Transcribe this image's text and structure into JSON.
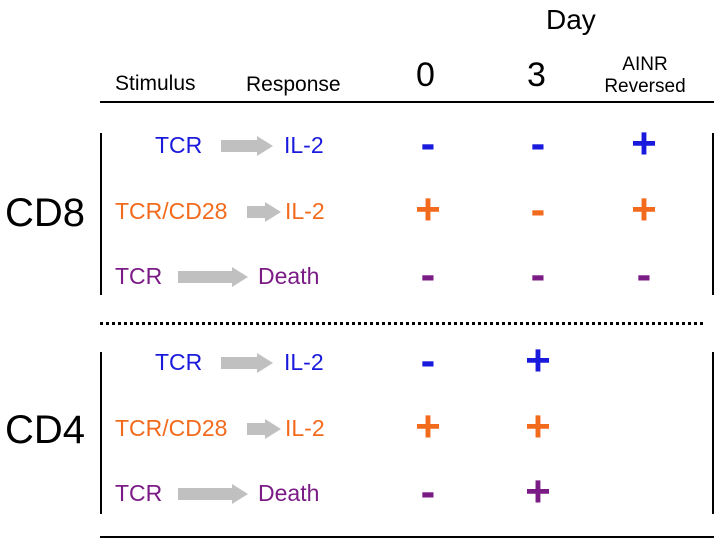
{
  "header": {
    "stimulus": "Stimulus",
    "response": "Response",
    "day": "Day",
    "day0": "0",
    "day3": "3",
    "ainr_line1": "AINR",
    "ainr_line2": "Reversed"
  },
  "colors": {
    "blue": "#1a1adc",
    "orange": "#f26b1d",
    "purple": "#7b1b86",
    "arrow": "#c0c0c0"
  },
  "groups": [
    {
      "name": "CD8",
      "rows": [
        {
          "stimulus": "TCR",
          "response": "IL-2",
          "color": "blue",
          "day0": "-",
          "day3": "-",
          "ainr": "+"
        },
        {
          "stimulus": "TCR/CD28",
          "response": "IL-2",
          "color": "orange",
          "day0": "+",
          "day3": "-",
          "ainr": "+"
        },
        {
          "stimulus": "TCR",
          "response": "Death",
          "color": "purple",
          "day0": "-",
          "day3": "-",
          "ainr": "-"
        }
      ]
    },
    {
      "name": "CD4",
      "rows": [
        {
          "stimulus": "TCR",
          "response": "IL-2",
          "color": "blue",
          "day0": "-",
          "day3": "+",
          "ainr": ""
        },
        {
          "stimulus": "TCR/CD28",
          "response": "IL-2",
          "color": "orange",
          "day0": "+",
          "day3": "+",
          "ainr": ""
        },
        {
          "stimulus": "TCR",
          "response": "Death",
          "color": "purple",
          "day0": "-",
          "day3": "+",
          "ainr": ""
        }
      ]
    }
  ]
}
